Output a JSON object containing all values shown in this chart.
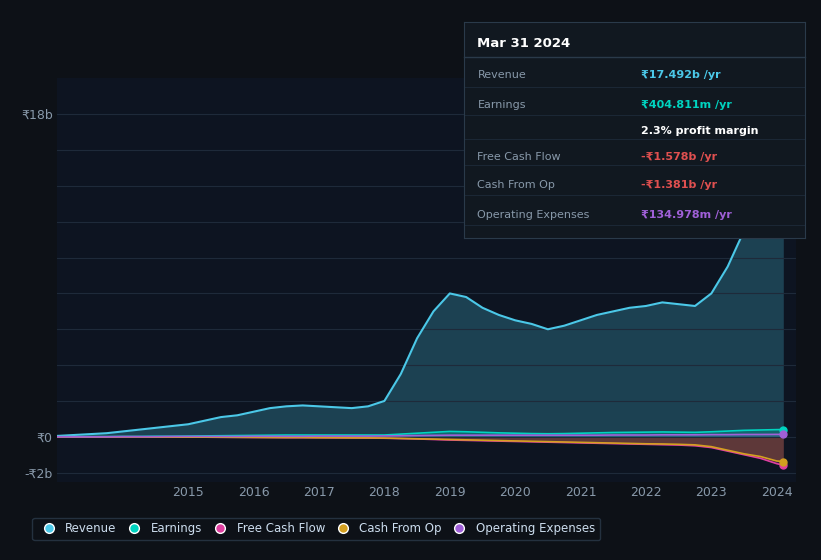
{
  "bg_color": "#0d1117",
  "plot_bg_color": "#0d1421",
  "grid_color": "#1e2a3a",
  "years": [
    2013,
    2013.25,
    2013.5,
    2013.75,
    2014,
    2014.25,
    2014.5,
    2014.75,
    2015,
    2015.25,
    2015.5,
    2015.75,
    2016,
    2016.25,
    2016.5,
    2016.75,
    2017,
    2017.25,
    2017.5,
    2017.75,
    2018,
    2018.25,
    2018.5,
    2018.75,
    2019,
    2019.25,
    2019.5,
    2019.75,
    2020,
    2020.25,
    2020.5,
    2020.75,
    2021,
    2021.25,
    2021.5,
    2021.75,
    2022,
    2022.25,
    2022.5,
    2022.75,
    2023,
    2023.25,
    2023.5,
    2023.75,
    2024,
    2024.1
  ],
  "revenue": [
    0.05,
    0.1,
    0.15,
    0.2,
    0.3,
    0.4,
    0.5,
    0.6,
    0.7,
    0.9,
    1.1,
    1.2,
    1.4,
    1.6,
    1.7,
    1.75,
    1.7,
    1.65,
    1.6,
    1.7,
    2.0,
    3.5,
    5.5,
    7.0,
    8.0,
    7.8,
    7.2,
    6.8,
    6.5,
    6.3,
    6.0,
    6.2,
    6.5,
    6.8,
    7.0,
    7.2,
    7.3,
    7.5,
    7.4,
    7.3,
    8.0,
    9.5,
    11.5,
    14.0,
    17.0,
    17.492
  ],
  "earnings": [
    0.0,
    0.0,
    0.01,
    0.01,
    0.02,
    0.02,
    0.03,
    0.03,
    0.04,
    0.05,
    0.06,
    0.07,
    0.08,
    0.09,
    0.1,
    0.1,
    0.1,
    0.1,
    0.1,
    0.1,
    0.1,
    0.15,
    0.2,
    0.25,
    0.3,
    0.28,
    0.25,
    0.22,
    0.2,
    0.18,
    0.17,
    0.18,
    0.2,
    0.22,
    0.24,
    0.25,
    0.26,
    0.27,
    0.26,
    0.25,
    0.28,
    0.32,
    0.36,
    0.38,
    0.4,
    0.405
  ],
  "free_cash_flow": [
    0.0,
    0.0,
    0.0,
    0.0,
    0.0,
    0.0,
    -0.01,
    -0.01,
    -0.02,
    -0.02,
    -0.03,
    -0.03,
    -0.04,
    -0.04,
    -0.05,
    -0.05,
    -0.05,
    -0.06,
    -0.06,
    -0.07,
    -0.08,
    -0.1,
    -0.12,
    -0.15,
    -0.18,
    -0.2,
    -0.22,
    -0.24,
    -0.26,
    -0.28,
    -0.3,
    -0.32,
    -0.34,
    -0.36,
    -0.38,
    -0.4,
    -0.42,
    -0.44,
    -0.46,
    -0.5,
    -0.6,
    -0.8,
    -1.0,
    -1.2,
    -1.5,
    -1.578
  ],
  "cash_from_op": [
    0.0,
    0.0,
    0.0,
    0.0,
    0.0,
    0.0,
    -0.01,
    -0.01,
    -0.02,
    -0.02,
    -0.02,
    -0.03,
    -0.03,
    -0.04,
    -0.04,
    -0.04,
    -0.05,
    -0.05,
    -0.06,
    -0.06,
    -0.07,
    -0.09,
    -0.11,
    -0.13,
    -0.15,
    -0.17,
    -0.19,
    -0.21,
    -0.23,
    -0.25,
    -0.27,
    -0.29,
    -0.31,
    -0.33,
    -0.35,
    -0.37,
    -0.39,
    -0.4,
    -0.42,
    -0.45,
    -0.55,
    -0.75,
    -0.95,
    -1.1,
    -1.35,
    -1.381
  ],
  "operating_expenses": [
    0.0,
    0.0,
    0.0,
    0.0,
    0.01,
    0.01,
    0.01,
    0.02,
    0.02,
    0.02,
    0.02,
    0.02,
    0.03,
    0.03,
    0.03,
    0.03,
    0.04,
    0.04,
    0.04,
    0.04,
    0.05,
    0.06,
    0.07,
    0.08,
    0.09,
    0.09,
    0.09,
    0.09,
    0.09,
    0.09,
    0.09,
    0.09,
    0.09,
    0.09,
    0.1,
    0.1,
    0.1,
    0.11,
    0.11,
    0.11,
    0.12,
    0.12,
    0.13,
    0.13,
    0.135,
    0.135
  ],
  "revenue_color": "#4bc8e8",
  "earnings_color": "#00d4c0",
  "fcf_color": "#e040a0",
  "cashop_color": "#d4a020",
  "opex_color": "#a060d8",
  "neg_color": "#e05050",
  "ylim_min": -2.5,
  "ylim_max": 20.0,
  "xlim_min": 2013.0,
  "xlim_max": 2024.3,
  "xticks": [
    2015,
    2016,
    2017,
    2018,
    2019,
    2020,
    2021,
    2022,
    2023,
    2024
  ],
  "info_title": "Mar 31 2024",
  "info_revenue_label": "Revenue",
  "info_revenue_value": "₹17.492b /yr",
  "info_earnings_label": "Earnings",
  "info_earnings_value": "₹404.811m /yr",
  "info_profit_margin": "2.3% profit margin",
  "info_fcf_label": "Free Cash Flow",
  "info_fcf_value": "-₹1.578b /yr",
  "info_cashop_label": "Cash From Op",
  "info_cashop_value": "-₹1.381b /yr",
  "info_opex_label": "Operating Expenses",
  "info_opex_value": "₹134.978m /yr",
  "legend_labels": [
    "Revenue",
    "Earnings",
    "Free Cash Flow",
    "Cash From Op",
    "Operating Expenses"
  ]
}
